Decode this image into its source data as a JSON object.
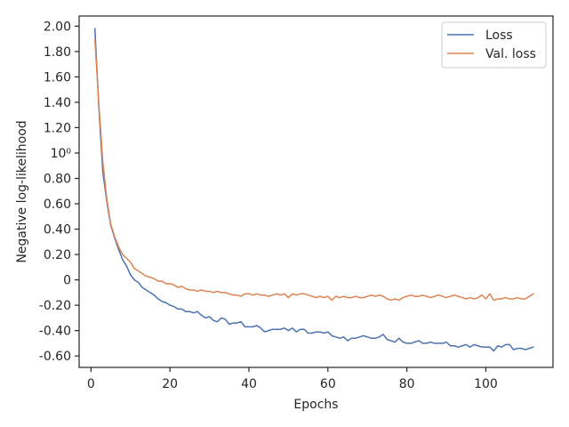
{
  "chart_data": {
    "type": "line",
    "xlabel": "Epochs",
    "ylabel": "Negative log-likelihood",
    "xlim": [
      -3,
      117
    ],
    "ylim": [
      -0.69,
      2.08
    ],
    "xticks": [
      0,
      20,
      40,
      60,
      80,
      100
    ],
    "xtick_labels": [
      "0",
      "20",
      "40",
      "60",
      "80",
      "100"
    ],
    "yticks": [
      2.0,
      1.8,
      1.6,
      1.4,
      1.2,
      1.0,
      0.8,
      0.6,
      0.4,
      0.2,
      0.0,
      -0.2,
      -0.4,
      -0.6
    ],
    "ytick_labels": [
      "2.00",
      "1.80",
      "1.60",
      "1.40",
      "1.20",
      "10⁰",
      "0.80",
      "0.60",
      "0.40",
      "0.20",
      "0",
      "-0.20",
      "-0.40",
      "-0.60"
    ],
    "grid": false,
    "legend_position": "top-right",
    "series": [
      {
        "name": "Loss",
        "color": "#4c72b0",
        "x": [
          1,
          2,
          3,
          4,
          5,
          6,
          7,
          8,
          9,
          10,
          11,
          12,
          13,
          14,
          15,
          16,
          17,
          18,
          19,
          20,
          21,
          22,
          23,
          24,
          25,
          26,
          27,
          28,
          29,
          30,
          31,
          32,
          33,
          34,
          35,
          36,
          37,
          38,
          39,
          40,
          41,
          42,
          43,
          44,
          45,
          46,
          47,
          48,
          49,
          50,
          51,
          52,
          53,
          54,
          55,
          56,
          57,
          58,
          59,
          60,
          61,
          62,
          63,
          64,
          65,
          66,
          67,
          68,
          69,
          70,
          71,
          72,
          73,
          74,
          75,
          76,
          77,
          78,
          79,
          80,
          81,
          82,
          83,
          84,
          85,
          86,
          87,
          88,
          89,
          90,
          91,
          92,
          93,
          94,
          95,
          96,
          97,
          98,
          99,
          100,
          101,
          102,
          103,
          104,
          105,
          106,
          107,
          108,
          109,
          110,
          111,
          112
        ],
        "y": [
          1.98,
          1.35,
          0.85,
          0.62,
          0.43,
          0.33,
          0.24,
          0.16,
          0.11,
          0.04,
          0.0,
          -0.02,
          -0.06,
          -0.08,
          -0.1,
          -0.12,
          -0.15,
          -0.17,
          -0.18,
          -0.2,
          -0.21,
          -0.23,
          -0.23,
          -0.25,
          -0.25,
          -0.26,
          -0.25,
          -0.28,
          -0.3,
          -0.29,
          -0.32,
          -0.33,
          -0.3,
          -0.31,
          -0.35,
          -0.34,
          -0.34,
          -0.33,
          -0.37,
          -0.37,
          -0.37,
          -0.36,
          -0.38,
          -0.41,
          -0.4,
          -0.39,
          -0.39,
          -0.39,
          -0.38,
          -0.4,
          -0.38,
          -0.41,
          -0.39,
          -0.39,
          -0.42,
          -0.42,
          -0.41,
          -0.41,
          -0.42,
          -0.41,
          -0.44,
          -0.45,
          -0.46,
          -0.45,
          -0.48,
          -0.46,
          -0.46,
          -0.45,
          -0.44,
          -0.45,
          -0.46,
          -0.46,
          -0.45,
          -0.43,
          -0.47,
          -0.48,
          -0.49,
          -0.46,
          -0.49,
          -0.5,
          -0.5,
          -0.49,
          -0.48,
          -0.5,
          -0.5,
          -0.49,
          -0.5,
          -0.5,
          -0.5,
          -0.49,
          -0.52,
          -0.52,
          -0.53,
          -0.52,
          -0.51,
          -0.53,
          -0.51,
          -0.52,
          -0.53,
          -0.53,
          -0.53,
          -0.56,
          -0.52,
          -0.53,
          -0.51,
          -0.51,
          -0.55,
          -0.54,
          -0.54,
          -0.55,
          -0.54,
          -0.53
        ]
      },
      {
        "name": "Val. loss",
        "color": "#dd8452",
        "x": [
          1,
          2,
          3,
          4,
          5,
          6,
          7,
          8,
          9,
          10,
          11,
          12,
          13,
          14,
          15,
          16,
          17,
          18,
          19,
          20,
          21,
          22,
          23,
          24,
          25,
          26,
          27,
          28,
          29,
          30,
          31,
          32,
          33,
          34,
          35,
          36,
          37,
          38,
          39,
          40,
          41,
          42,
          43,
          44,
          45,
          46,
          47,
          48,
          49,
          50,
          51,
          52,
          53,
          54,
          55,
          56,
          57,
          58,
          59,
          60,
          61,
          62,
          63,
          64,
          65,
          66,
          67,
          68,
          69,
          70,
          71,
          72,
          73,
          74,
          75,
          76,
          77,
          78,
          79,
          80,
          81,
          82,
          83,
          84,
          85,
          86,
          87,
          88,
          89,
          90,
          91,
          92,
          93,
          94,
          95,
          96,
          97,
          98,
          99,
          100,
          101,
          102,
          103,
          104,
          105,
          106,
          107,
          108,
          109,
          110,
          111,
          112
        ],
        "y": [
          1.89,
          1.38,
          0.93,
          0.64,
          0.44,
          0.34,
          0.26,
          0.2,
          0.17,
          0.14,
          0.09,
          0.07,
          0.05,
          0.03,
          0.02,
          0.01,
          -0.01,
          -0.01,
          -0.03,
          -0.03,
          -0.04,
          -0.06,
          -0.05,
          -0.07,
          -0.08,
          -0.08,
          -0.09,
          -0.08,
          -0.09,
          -0.09,
          -0.1,
          -0.09,
          -0.1,
          -0.1,
          -0.11,
          -0.12,
          -0.12,
          -0.13,
          -0.11,
          -0.11,
          -0.12,
          -0.11,
          -0.12,
          -0.12,
          -0.13,
          -0.12,
          -0.11,
          -0.12,
          -0.11,
          -0.14,
          -0.11,
          -0.12,
          -0.11,
          -0.11,
          -0.12,
          -0.13,
          -0.14,
          -0.13,
          -0.14,
          -0.13,
          -0.16,
          -0.13,
          -0.14,
          -0.13,
          -0.14,
          -0.14,
          -0.13,
          -0.14,
          -0.14,
          -0.13,
          -0.12,
          -0.13,
          -0.12,
          -0.13,
          -0.15,
          -0.16,
          -0.15,
          -0.16,
          -0.14,
          -0.13,
          -0.12,
          -0.13,
          -0.13,
          -0.12,
          -0.13,
          -0.14,
          -0.13,
          -0.12,
          -0.13,
          -0.14,
          -0.13,
          -0.12,
          -0.13,
          -0.14,
          -0.15,
          -0.14,
          -0.15,
          -0.14,
          -0.12,
          -0.15,
          -0.11,
          -0.16,
          -0.15,
          -0.15,
          -0.14,
          -0.15,
          -0.15,
          -0.14,
          -0.15,
          -0.15,
          -0.13,
          -0.11
        ]
      }
    ]
  }
}
